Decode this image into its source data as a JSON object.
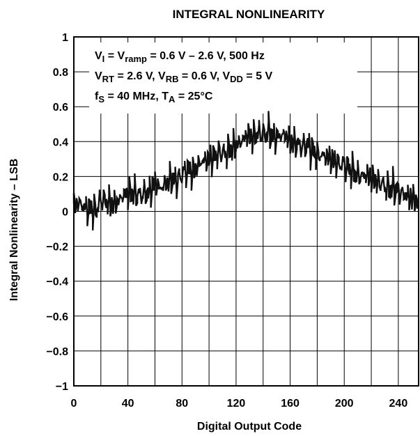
{
  "chart_data": {
    "type": "line",
    "title": "INTEGRAL NONLINEARITY",
    "xlabel": "Digital Output Code",
    "ylabel": "Integral Nonlinearity – LSB",
    "xlim": [
      0,
      255
    ],
    "ylim": [
      -1,
      1
    ],
    "x_ticks": [
      "0",
      "40",
      "80",
      "120",
      "160",
      "200",
      "240"
    ],
    "y_ticks": [
      "1",
      "0.8",
      "0.6",
      "0.4",
      "0.2",
      "0",
      "−0.2",
      "−0.4",
      "−0.6",
      "−0.8",
      "−1"
    ],
    "grid": true,
    "annotations": [
      {
        "parts": [
          {
            "t": "V",
            "s": false
          },
          {
            "t": "I",
            "s": true
          },
          {
            "t": " = V",
            "s": false
          },
          {
            "t": "ramp",
            "s": true
          },
          {
            "t": " = 0.6 V – 2.6 V, 500 Hz",
            "s": false
          }
        ]
      },
      {
        "parts": [
          {
            "t": "V",
            "s": false
          },
          {
            "t": "RT",
            "s": true
          },
          {
            "t": " = 2.6 V, V",
            "s": false
          },
          {
            "t": "RB",
            "s": true
          },
          {
            "t": " = 0.6 V, V",
            "s": false
          },
          {
            "t": "DD",
            "s": true
          },
          {
            "t": " = 5 V",
            "s": false
          }
        ]
      },
      {
        "parts": [
          {
            "t": "f",
            "s": false
          },
          {
            "t": "S",
            "s": true
          },
          {
            "t": " = 40 MHz, T",
            "s": false
          },
          {
            "t": "A",
            "s": true
          },
          {
            "t": " = 25°C",
            "s": false
          }
        ]
      }
    ],
    "series": [
      {
        "x": [
          0,
          4,
          8,
          12,
          16,
          20,
          24,
          28,
          32,
          36,
          40,
          44,
          48,
          52,
          56,
          60,
          64,
          68,
          72,
          76,
          80,
          84,
          88,
          92,
          96,
          100,
          104,
          108,
          112,
          116,
          120,
          124,
          128,
          132,
          136,
          140,
          144,
          148,
          152,
          156,
          160,
          164,
          168,
          172,
          176,
          180,
          184,
          188,
          192,
          196,
          200,
          204,
          208,
          212,
          216,
          220,
          224,
          228,
          232,
          236,
          240,
          244,
          248,
          252,
          255
        ],
        "y": [
          0.03,
          0.05,
          0.02,
          0.01,
          0.0,
          0.07,
          0.06,
          0.04,
          0.05,
          0.09,
          0.1,
          0.11,
          0.09,
          0.1,
          0.11,
          0.17,
          0.13,
          0.16,
          0.19,
          0.17,
          0.21,
          0.24,
          0.22,
          0.27,
          0.29,
          0.3,
          0.31,
          0.34,
          0.33,
          0.36,
          0.38,
          0.4,
          0.44,
          0.42,
          0.45,
          0.44,
          0.46,
          0.42,
          0.43,
          0.44,
          0.4,
          0.39,
          0.37,
          0.38,
          0.35,
          0.32,
          0.32,
          0.31,
          0.29,
          0.27,
          0.27,
          0.24,
          0.22,
          0.2,
          0.21,
          0.19,
          0.17,
          0.16,
          0.13,
          0.14,
          0.11,
          0.1,
          0.08,
          0.07,
          0.04
        ]
      }
    ]
  }
}
